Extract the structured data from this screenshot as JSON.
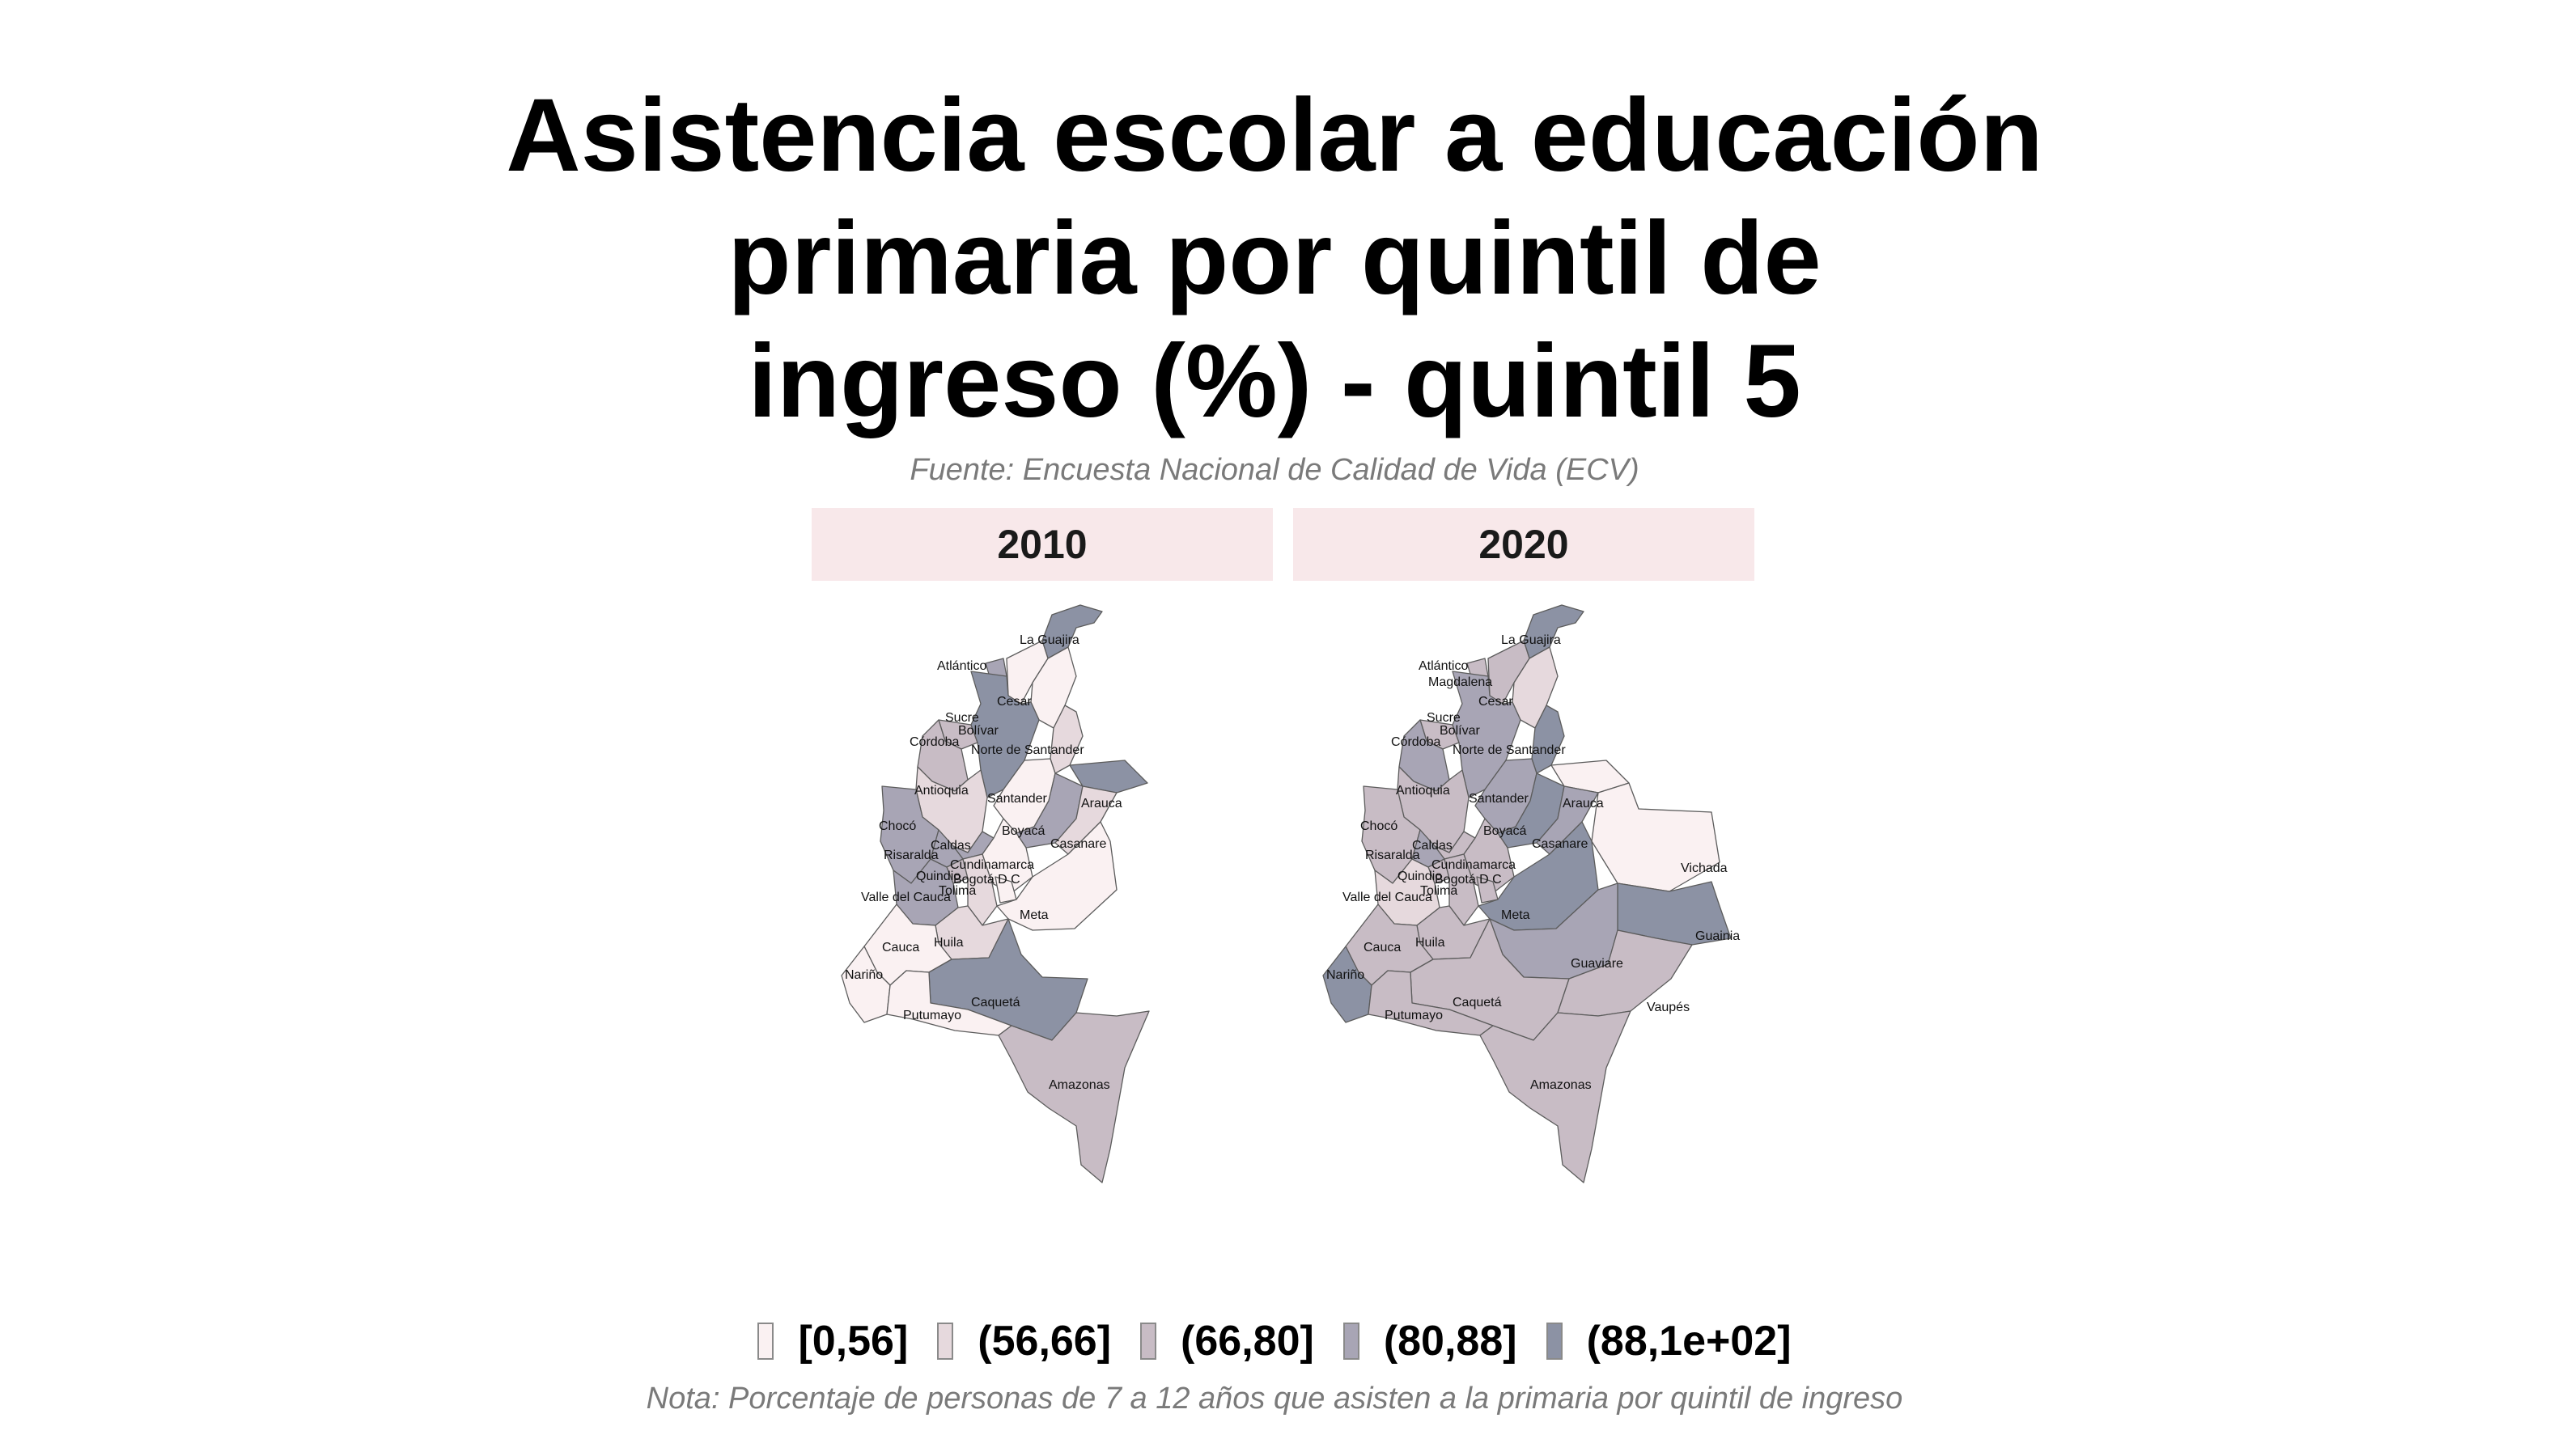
{
  "title_lines": [
    "Asistencia escolar a educación",
    "primaria por quintil de",
    "ingreso (%) - quintil 5"
  ],
  "source": "Fuente: Encuesta Nacional de Calidad de Vida (ECV)",
  "note": "Nota: Porcentaje de personas de 7 a 12 años que asisten a la primaria por quintil de ingreso",
  "legend": [
    {
      "label": "[0,56]",
      "color": "#faf1f2"
    },
    {
      "label": "(56,66]",
      "color": "#e6d9dd"
    },
    {
      "label": "(66,80]",
      "color": "#c8bcc5"
    },
    {
      "label": "(80,88]",
      "color": "#a8a5b5"
    },
    {
      "label": "(88,1e+02]",
      "color": "#8c92a4"
    }
  ],
  "panels": [
    {
      "year": "2010",
      "labels": [
        "La Guajira",
        "Atlántico",
        "Cesar",
        "Sucre",
        "Bolívar",
        "Córdoba",
        "Norte de Santander",
        "Antioquia",
        "Santander",
        "Arauca",
        "Chocó",
        "Boyacá",
        "Casanare",
        "Caldas",
        "Risaralda",
        "Cundinamarca",
        "Quindio",
        "Bogotá D C",
        "Tolima",
        "Valle del Cauca",
        "Meta",
        "Huila",
        "Cauca",
        "Nariño",
        "Caquetá",
        "Putumayo",
        "Amazonas"
      ],
      "bins": {
        "La Guajira": 4,
        "Atlántico": 3,
        "Magdalena": 0,
        "Cesar": 0,
        "Sucre": 2,
        "Bolívar": 4,
        "Córdoba": 2,
        "Norte de Santander": 1,
        "Antioquia": 1,
        "Santander": 0,
        "Arauca": 4,
        "Chocó": 3,
        "Boyacá": 3,
        "Casanare": 1,
        "Caldas": 3,
        "Risaralda": 3,
        "Cundinamarca": 0,
        "Quindio": 2,
        "Bogotá D C": 0,
        "Tolima": 1,
        "Valle del Cauca": 3,
        "Meta": 0,
        "Huila": 1,
        "Cauca": 0,
        "Nariño": 0,
        "Caquetá": 4,
        "Putumayo": 0,
        "Amazonas": 2
      }
    },
    {
      "year": "2020",
      "labels": [
        "La Guajira",
        "Atlántico",
        "Magdalena",
        "Cesar",
        "Sucre",
        "Bolívar",
        "Córdoba",
        "Norte de Santander",
        "Antioquia",
        "Santander",
        "Arauca",
        "Chocó",
        "Boyacá",
        "Casanare",
        "Caldas",
        "Risaralda",
        "Cundinamarca",
        "Quindio",
        "Bogotá D C",
        "Tolima",
        "Valle del Cauca",
        "Vichada",
        "Meta",
        "Huila",
        "Guainia",
        "Cauca",
        "Nariño",
        "Guaviare",
        "Caquetá",
        "Vaupés",
        "Putumayo",
        "Amazonas"
      ],
      "bins": {
        "La Guajira": 4,
        "Atlántico": 2,
        "Magdalena": 2,
        "Cesar": 1,
        "Sucre": 2,
        "Bolívar": 3,
        "Córdoba": 3,
        "Norte de Santander": 4,
        "Antioquia": 2,
        "Santander": 3,
        "Arauca": 0,
        "Chocó": 2,
        "Boyacá": 4,
        "Casanare": 3,
        "Caldas": 2,
        "Risaralda": 3,
        "Cundinamarca": 2,
        "Quindio": 2,
        "Bogotá D C": 2,
        "Tolima": 2,
        "Valle del Cauca": 1,
        "Vichada": 0,
        "Meta": 4,
        "Huila": 2,
        "Guainia": 4,
        "Cauca": 2,
        "Nariño": 4,
        "Guaviare": 3,
        "Caquetá": 2,
        "Vaupés": 2,
        "Putumayo": 2,
        "Amazonas": 2
      }
    }
  ]
}
